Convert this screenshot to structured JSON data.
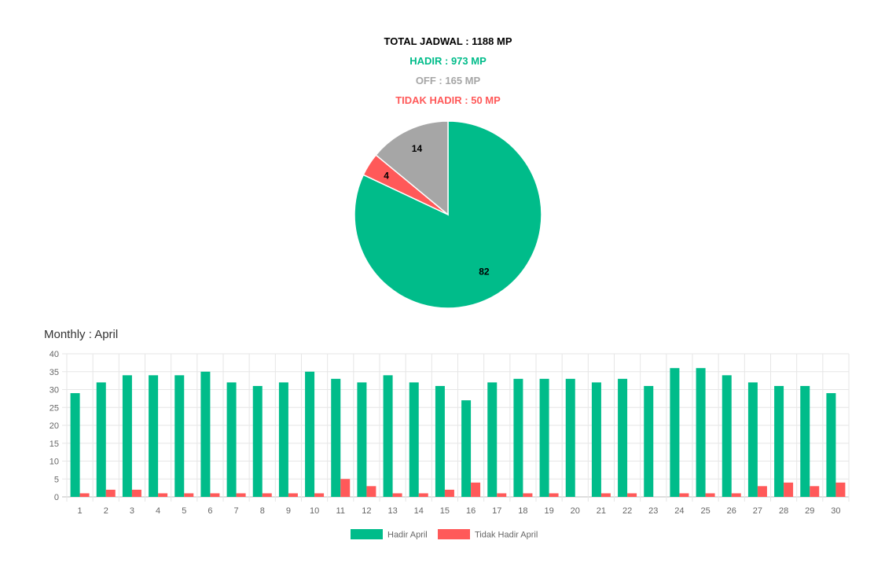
{
  "summary": {
    "total": "TOTAL JADWAL : 1188 MP",
    "hadir": "HADIR : 973 MP",
    "off": "OFF : 165 MP",
    "tidak_hadir": "TIDAK HADIR : 50 MP"
  },
  "colors": {
    "hadir": "#00bc8a",
    "off": "#a6a6a6",
    "tidak_hadir": "#ff5959",
    "total": "#000000"
  },
  "monthly_title": "Monthly : April",
  "chart_data": [
    {
      "type": "pie",
      "slices": [
        {
          "label": "HADIR",
          "value": 82,
          "color": "#00bc8a"
        },
        {
          "label": "TIDAK HADIR",
          "value": 4,
          "color": "#ff5959"
        },
        {
          "label": "OFF",
          "value": 14,
          "color": "#a6a6a6"
        }
      ]
    },
    {
      "type": "bar",
      "categories": [
        "1",
        "2",
        "3",
        "4",
        "5",
        "6",
        "7",
        "8",
        "9",
        "10",
        "11",
        "12",
        "13",
        "14",
        "15",
        "16",
        "17",
        "18",
        "19",
        "20",
        "21",
        "22",
        "23",
        "24",
        "25",
        "26",
        "27",
        "28",
        "29",
        "30"
      ],
      "series": [
        {
          "name": "Hadir April",
          "color": "#00bc8a",
          "values": [
            29,
            32,
            34,
            34,
            34,
            35,
            32,
            31,
            32,
            35,
            33,
            32,
            34,
            32,
            31,
            27,
            32,
            33,
            33,
            33,
            32,
            33,
            31,
            36,
            36,
            34,
            32,
            31,
            31,
            29
          ]
        },
        {
          "name": "Tidak Hadir April",
          "color": "#ff5959",
          "values": [
            1,
            2,
            2,
            1,
            1,
            1,
            1,
            1,
            1,
            1,
            5,
            3,
            1,
            1,
            2,
            4,
            1,
            1,
            1,
            0,
            1,
            1,
            0,
            1,
            1,
            1,
            3,
            4,
            3,
            4
          ]
        }
      ],
      "ylim": [
        0,
        40
      ],
      "yticks": [
        0,
        5,
        10,
        15,
        20,
        25,
        30,
        35,
        40
      ],
      "grid": true,
      "legend": "bottom"
    }
  ]
}
